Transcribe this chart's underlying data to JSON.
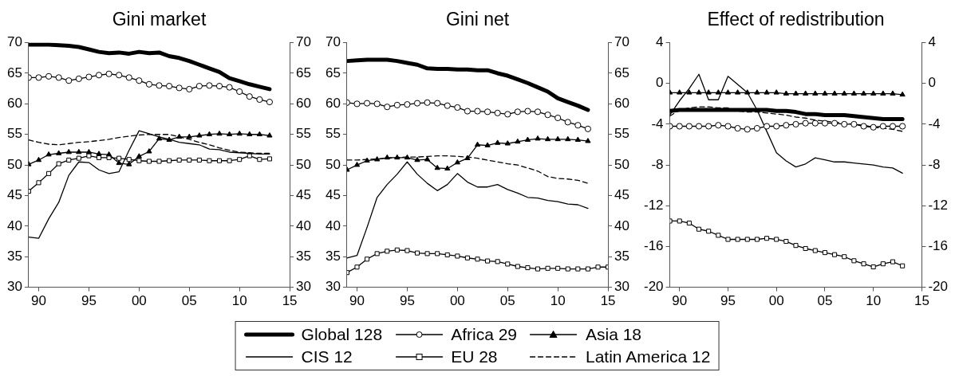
{
  "chart_data": [
    {
      "type": "line",
      "title": "Gini market",
      "x": [
        1989,
        1990,
        1991,
        1992,
        1993,
        1994,
        1995,
        1996,
        1997,
        1998,
        1999,
        2000,
        2001,
        2002,
        2003,
        2004,
        2005,
        2006,
        2007,
        2008,
        2009,
        2010,
        2011,
        2012,
        2013
      ],
      "xlim": [
        1989,
        2015
      ],
      "xticks": [
        {
          "value": 1990,
          "label": "90"
        },
        {
          "value": 1995,
          "label": "95"
        },
        {
          "value": 2000,
          "label": "00"
        },
        {
          "value": 2005,
          "label": "05"
        },
        {
          "value": 2010,
          "label": "10"
        },
        {
          "value": 2015,
          "label": "15"
        }
      ],
      "ylim": [
        30,
        70
      ],
      "yticks": [
        30,
        35,
        40,
        45,
        50,
        55,
        60,
        65,
        70
      ],
      "y2lim": [
        30,
        70
      ],
      "y2ticks": [
        30,
        35,
        40,
        45,
        50,
        55,
        60,
        65,
        70
      ],
      "grid": false,
      "series": [
        {
          "color": "#000000",
          "marker": "none",
          "line_style": "solid",
          "values": [
            69.7,
            69.7,
            69.7,
            69.6,
            69.5,
            69.3,
            68.9,
            68.5,
            68.3,
            68.4,
            68.2,
            68.5,
            68.3,
            68.4,
            67.8,
            67.5,
            67.0,
            66.4,
            65.8,
            65.2,
            64.2,
            63.7,
            63.2,
            62.8,
            62.4
          ]
        },
        {
          "color": "#000000",
          "marker": "circle",
          "line_style": "solid",
          "values": [
            64.3,
            64.3,
            64.5,
            64.3,
            63.8,
            64.1,
            64.4,
            64.7,
            64.9,
            64.7,
            64.3,
            63.8,
            63.2,
            63.0,
            62.9,
            62.6,
            62.4,
            62.9,
            63.0,
            62.9,
            62.7,
            62.0,
            61.2,
            60.7,
            60.3
          ]
        },
        {
          "color": "#000000",
          "marker": "triangle",
          "line_style": "solid",
          "values": [
            50.1,
            50.8,
            51.7,
            51.9,
            52.1,
            52.1,
            52.1,
            51.8,
            51.7,
            50.3,
            50.1,
            51.4,
            52.2,
            54.3,
            54.1,
            54.6,
            54.6,
            54.8,
            55.0,
            55.1,
            55.0,
            55.1,
            55.0,
            55.0,
            54.8
          ]
        },
        {
          "color": "#000000",
          "marker": "none",
          "line_style": "solid",
          "values": [
            38.2,
            38.0,
            41.2,
            43.9,
            48.3,
            50.5,
            50.4,
            49.2,
            48.6,
            48.9,
            52.4,
            55.6,
            55.1,
            54.6,
            54.2,
            53.7,
            53.5,
            53.3,
            52.6,
            52.5,
            52.1,
            52.0,
            51.9,
            51.8,
            51.8
          ]
        },
        {
          "color": "#000000",
          "marker": "square",
          "line_style": "solid",
          "values": [
            45.7,
            47.1,
            48.6,
            50.2,
            50.8,
            51.1,
            51.5,
            51.2,
            51.2,
            51.1,
            50.9,
            50.7,
            50.6,
            50.6,
            50.7,
            50.8,
            50.8,
            50.8,
            50.7,
            50.7,
            50.7,
            50.9,
            51.5,
            50.9,
            51.0
          ]
        },
        {
          "color": "#000000",
          "marker": "none",
          "line_style": "dashed",
          "values": [
            54.1,
            53.7,
            53.4,
            53.3,
            53.5,
            53.7,
            53.8,
            54.0,
            54.2,
            54.5,
            54.7,
            54.9,
            55.0,
            55.0,
            55.0,
            54.6,
            54.2,
            53.7,
            53.3,
            52.8,
            52.4,
            52.1,
            52.0,
            51.9,
            51.9
          ]
        }
      ]
    },
    {
      "type": "line",
      "title": "Gini net",
      "x": [
        1989,
        1990,
        1991,
        1992,
        1993,
        1994,
        1995,
        1996,
        1997,
        1998,
        1999,
        2000,
        2001,
        2002,
        2003,
        2004,
        2005,
        2006,
        2007,
        2008,
        2009,
        2010,
        2011,
        2012,
        2013
      ],
      "xlim": [
        1989,
        2015
      ],
      "xticks": [
        {
          "value": 1990,
          "label": "90"
        },
        {
          "value": 1995,
          "label": "95"
        },
        {
          "value": 2000,
          "label": "00"
        },
        {
          "value": 2005,
          "label": "05"
        },
        {
          "value": 2010,
          "label": "10"
        },
        {
          "value": 2015,
          "label": "15"
        }
      ],
      "ylim": [
        30,
        70
      ],
      "yticks": [
        30,
        35,
        40,
        45,
        50,
        55,
        60,
        65,
        70
      ],
      "y2lim": [
        30,
        70
      ],
      "y2ticks": [
        30,
        35,
        40,
        45,
        50,
        55,
        60,
        65,
        70
      ],
      "grid": false,
      "legend": "bottom",
      "series": [
        {
          "name": "Global 128",
          "color": "#000000",
          "marker": "none",
          "line_style": "solid",
          "values": [
            67.0,
            67.1,
            67.2,
            67.2,
            67.2,
            67.0,
            66.7,
            66.4,
            65.8,
            65.7,
            65.7,
            65.6,
            65.6,
            65.5,
            65.5,
            65.0,
            64.6,
            64.0,
            63.4,
            62.7,
            62.0,
            60.9,
            60.3,
            59.7,
            59.0
          ]
        },
        {
          "name": "Africa 29",
          "color": "#000000",
          "marker": "circle",
          "line_style": "solid",
          "values": [
            60.2,
            60.0,
            60.1,
            60.0,
            59.5,
            59.8,
            59.9,
            60.1,
            60.2,
            60.1,
            59.7,
            59.4,
            58.8,
            58.8,
            58.7,
            58.5,
            58.3,
            58.7,
            58.8,
            58.7,
            58.2,
            57.7,
            57.0,
            56.5,
            55.9
          ]
        },
        {
          "name": "Asia 18",
          "color": "#000000",
          "marker": "triangle",
          "line_style": "solid",
          "values": [
            49.2,
            50.0,
            50.7,
            50.9,
            51.2,
            51.2,
            51.2,
            50.8,
            50.9,
            49.5,
            49.4,
            50.4,
            51.1,
            53.3,
            53.2,
            53.6,
            53.5,
            53.8,
            54.1,
            54.3,
            54.2,
            54.2,
            54.2,
            54.1,
            53.9
          ]
        },
        {
          "name": "CIS 12",
          "color": "#000000",
          "marker": "none",
          "line_style": "solid",
          "values": [
            34.8,
            35.2,
            39.8,
            44.7,
            46.8,
            48.5,
            50.5,
            48.5,
            47.0,
            45.8,
            46.8,
            48.6,
            47.2,
            46.4,
            46.4,
            46.8,
            46.0,
            45.4,
            44.7,
            44.6,
            44.2,
            44.0,
            43.6,
            43.5,
            42.9
          ]
        },
        {
          "name": "EU 28",
          "color": "#000000",
          "marker": "square",
          "line_style": "solid",
          "x": [
            1989,
            1990,
            1991,
            1992,
            1993,
            1994,
            1995,
            1996,
            1997,
            1998,
            1999,
            2000,
            2001,
            2002,
            2003,
            2004,
            2005,
            2006,
            2007,
            2008,
            2009,
            2010,
            2011,
            2012,
            2013,
            2014,
            2015
          ],
          "values": [
            32.4,
            33.3,
            34.6,
            35.5,
            35.9,
            36.1,
            36.0,
            35.6,
            35.5,
            35.5,
            35.3,
            35.1,
            34.8,
            34.6,
            34.3,
            34.2,
            33.8,
            33.4,
            33.2,
            33.0,
            33.1,
            33.1,
            33.0,
            33.0,
            33.0,
            33.3,
            33.3
          ]
        },
        {
          "name": "Latin America 12",
          "color": "#000000",
          "marker": "none",
          "line_style": "dashed",
          "values": [
            50.8,
            50.8,
            50.9,
            51.0,
            51.1,
            51.2,
            51.3,
            51.3,
            51.4,
            51.5,
            51.5,
            51.4,
            51.3,
            51.1,
            50.8,
            50.5,
            50.2,
            50.0,
            49.5,
            49.0,
            48.1,
            47.8,
            47.7,
            47.5,
            47.0
          ]
        }
      ]
    },
    {
      "type": "line",
      "title": "Effect of redistribution",
      "x": [
        1989,
        1990,
        1991,
        1992,
        1993,
        1994,
        1995,
        1996,
        1997,
        1998,
        1999,
        2000,
        2001,
        2002,
        2003,
        2004,
        2005,
        2006,
        2007,
        2008,
        2009,
        2010,
        2011,
        2012,
        2013
      ],
      "xlim": [
        1989,
        2015
      ],
      "xticks": [
        {
          "value": 1990,
          "label": "90"
        },
        {
          "value": 1995,
          "label": "95"
        },
        {
          "value": 2000,
          "label": "00"
        },
        {
          "value": 2005,
          "label": "05"
        },
        {
          "value": 2010,
          "label": "10"
        },
        {
          "value": 2015,
          "label": "15"
        }
      ],
      "ylim": [
        -20,
        4
      ],
      "yticks": [
        -20,
        -16,
        -12,
        -8,
        -4,
        0,
        4
      ],
      "y2lim": [
        -20,
        4
      ],
      "y2ticks": [
        -20,
        -16,
        -12,
        -8,
        -4,
        0,
        4
      ],
      "grid": false,
      "series": [
        {
          "color": "#000000",
          "marker": "none",
          "line_style": "solid",
          "values": [
            -2.7,
            -2.6,
            -2.6,
            -2.6,
            -2.6,
            -2.6,
            -2.6,
            -2.6,
            -2.6,
            -2.6,
            -2.6,
            -2.7,
            -2.7,
            -2.8,
            -3.0,
            -3.0,
            -3.1,
            -3.1,
            -3.1,
            -3.2,
            -3.3,
            -3.4,
            -3.5,
            -3.5,
            -3.5
          ]
        },
        {
          "color": "#000000",
          "marker": "circle",
          "line_style": "solid",
          "values": [
            -4.2,
            -4.2,
            -4.2,
            -4.2,
            -4.2,
            -4.1,
            -4.2,
            -4.4,
            -4.5,
            -4.4,
            -4.2,
            -4.2,
            -4.1,
            -4.0,
            -3.9,
            -3.9,
            -3.9,
            -3.9,
            -4.0,
            -4.0,
            -4.2,
            -4.3,
            -4.2,
            -4.2,
            -4.2
          ]
        },
        {
          "color": "#000000",
          "marker": "triangle",
          "line_style": "solid",
          "values": [
            -0.9,
            -0.9,
            -0.9,
            -0.9,
            -0.9,
            -0.9,
            -0.9,
            -0.9,
            -0.9,
            -0.9,
            -0.9,
            -0.9,
            -1.0,
            -1.0,
            -1.0,
            -1.0,
            -1.0,
            -1.0,
            -1.0,
            -1.0,
            -1.0,
            -1.0,
            -1.0,
            -1.0,
            -1.1
          ]
        },
        {
          "color": "#000000",
          "marker": "none",
          "line_style": "solid",
          "values": [
            -3.1,
            -1.7,
            -0.5,
            0.9,
            -1.6,
            -1.6,
            0.7,
            -0.1,
            -0.9,
            -2.6,
            -4.7,
            -6.8,
            -7.6,
            -8.2,
            -7.9,
            -7.3,
            -7.5,
            -7.7,
            -7.7,
            -7.8,
            -7.9,
            -8.0,
            -8.2,
            -8.3,
            -8.8
          ]
        },
        {
          "color": "#000000",
          "marker": "square",
          "line_style": "solid",
          "values": [
            -13.5,
            -13.5,
            -13.7,
            -14.3,
            -14.5,
            -14.9,
            -15.3,
            -15.3,
            -15.3,
            -15.3,
            -15.2,
            -15.3,
            -15.5,
            -15.9,
            -16.2,
            -16.4,
            -16.6,
            -16.8,
            -17.0,
            -17.4,
            -17.7,
            -18.0,
            -17.7,
            -17.5,
            -17.9
          ]
        },
        {
          "color": "#000000",
          "marker": "none",
          "line_style": "dashed",
          "values": [
            -3.2,
            -2.6,
            -2.4,
            -2.3,
            -2.3,
            -2.4,
            -2.4,
            -2.7,
            -2.8,
            -2.8,
            -2.9,
            -3.0,
            -3.1,
            -3.3,
            -3.4,
            -3.6,
            -3.7,
            -3.8,
            -3.9,
            -4.0,
            -4.1,
            -4.3,
            -4.4,
            -4.5,
            -4.7
          ]
        }
      ]
    }
  ]
}
